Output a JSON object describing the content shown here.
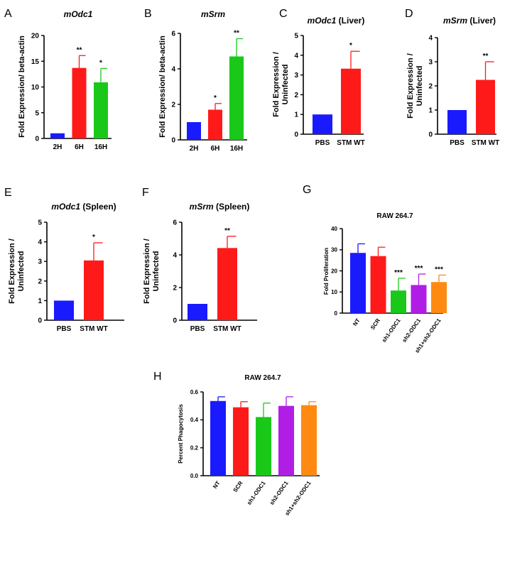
{
  "figure": {
    "colors": {
      "blue": "#1a1aff",
      "red": "#ff1a1a",
      "green": "#1ac81a",
      "purple": "#b01ee6",
      "orange": "#ff8a12",
      "axis": "#000000"
    }
  },
  "chart_data": [
    {
      "panel": "A",
      "type": "bar",
      "title_italic": "mOdc1",
      "title_rest": "",
      "ylabel": [
        "Fold Expression/ beta-actin"
      ],
      "categories": [
        "2H",
        "6H",
        "16H"
      ],
      "values": [
        1.0,
        13.7,
        10.9
      ],
      "errors": [
        0,
        2.4,
        2.7
      ],
      "significance": [
        "",
        "**",
        "*"
      ],
      "bar_colors": [
        "blue",
        "red",
        "green"
      ],
      "ylim": [
        0,
        20
      ],
      "yticks": [
        0,
        5,
        10,
        15,
        20
      ]
    },
    {
      "panel": "B",
      "type": "bar",
      "title_italic": "mSrm",
      "title_rest": "",
      "ylabel": [
        "Fold Expression/ beta-actin"
      ],
      "categories": [
        "2H",
        "6H",
        "16H"
      ],
      "values": [
        1.0,
        1.7,
        4.7
      ],
      "errors": [
        0,
        0.35,
        1.0
      ],
      "significance": [
        "",
        "*",
        "**"
      ],
      "bar_colors": [
        "blue",
        "red",
        "green"
      ],
      "ylim": [
        0,
        6
      ],
      "yticks": [
        0,
        2,
        4,
        6
      ]
    },
    {
      "panel": "C",
      "type": "bar",
      "title_italic": "mOdc1",
      "title_rest": " (Liver)",
      "ylabel": [
        "Fold Expression /",
        "Uninfected"
      ],
      "categories": [
        "PBS",
        "STM WT"
      ],
      "values": [
        1.0,
        3.32
      ],
      "errors": [
        0,
        0.88
      ],
      "significance": [
        "",
        "*"
      ],
      "bar_colors": [
        "blue",
        "red"
      ],
      "ylim": [
        0,
        5
      ],
      "yticks": [
        0,
        1,
        2,
        3,
        4,
        5
      ]
    },
    {
      "panel": "D",
      "type": "bar",
      "title_italic": "mSrm",
      "title_rest": " (Liver)",
      "ylabel": [
        "Fold Expression /",
        "Uninfected"
      ],
      "categories": [
        "PBS",
        "STM WT"
      ],
      "values": [
        1.0,
        2.25
      ],
      "errors": [
        0,
        0.75
      ],
      "significance": [
        "",
        "**"
      ],
      "bar_colors": [
        "blue",
        "red"
      ],
      "ylim": [
        0,
        4
      ],
      "yticks": [
        0,
        1,
        2,
        3,
        4
      ]
    },
    {
      "panel": "E",
      "type": "bar",
      "title_italic": "mOdc1",
      "title_rest": " (Spleen)",
      "ylabel": [
        "Fold Expression /",
        "Uninfected"
      ],
      "categories": [
        "PBS",
        "STM WT"
      ],
      "values": [
        1.0,
        3.05
      ],
      "errors": [
        0,
        0.9
      ],
      "significance": [
        "",
        "*"
      ],
      "bar_colors": [
        "blue",
        "red"
      ],
      "ylim": [
        0,
        5
      ],
      "yticks": [
        0,
        1,
        2,
        3,
        4,
        5
      ]
    },
    {
      "panel": "F",
      "type": "bar",
      "title_italic": "mSrm",
      "title_rest": " (Spleen)",
      "ylabel": [
        "Fold Expression /",
        "Uninfected"
      ],
      "categories": [
        "PBS",
        "STM WT"
      ],
      "values": [
        1.0,
        4.42
      ],
      "errors": [
        0,
        0.72
      ],
      "significance": [
        "",
        "**"
      ],
      "bar_colors": [
        "blue",
        "red"
      ],
      "ylim": [
        0,
        6
      ],
      "yticks": [
        0,
        2,
        4,
        6
      ]
    },
    {
      "panel": "G",
      "type": "bar",
      "title_italic": "",
      "title_rest": "RAW 264.7",
      "ylabel": [
        "Fold Proliferation"
      ],
      "categories": [
        "NT",
        "SCR",
        "sh1-ODC1",
        "sh2-ODC1",
        "sh1+sh2-ODC1"
      ],
      "values": [
        28.5,
        27.0,
        10.7,
        13.3,
        14.7
      ],
      "errors": [
        4.3,
        4.2,
        5.8,
        5.2,
        3.3
      ],
      "significance": [
        "",
        "",
        "***",
        "***",
        "***"
      ],
      "bar_colors": [
        "blue",
        "red",
        "green",
        "purple",
        "orange"
      ],
      "ylim": [
        0,
        40
      ],
      "yticks": [
        0,
        10,
        20,
        30,
        40
      ]
    },
    {
      "panel": "H",
      "type": "bar",
      "title_italic": "",
      "title_rest": "RAW 264.7",
      "ylabel": [
        "Percent Phagocytosis"
      ],
      "categories": [
        "NT",
        "SCR",
        "sh1-ODC1",
        "sh2-ODC1",
        "sh1+sh2-ODC1"
      ],
      "values": [
        0.535,
        0.49,
        0.42,
        0.5,
        0.505
      ],
      "errors": [
        0.03,
        0.04,
        0.1,
        0.065,
        0.025
      ],
      "significance": [
        "",
        "",
        "",
        "",
        ""
      ],
      "bar_colors": [
        "blue",
        "red",
        "green",
        "purple",
        "orange"
      ],
      "ylim": [
        0,
        0.6
      ],
      "yticks": [
        0.0,
        0.2,
        0.4,
        0.6
      ]
    }
  ]
}
